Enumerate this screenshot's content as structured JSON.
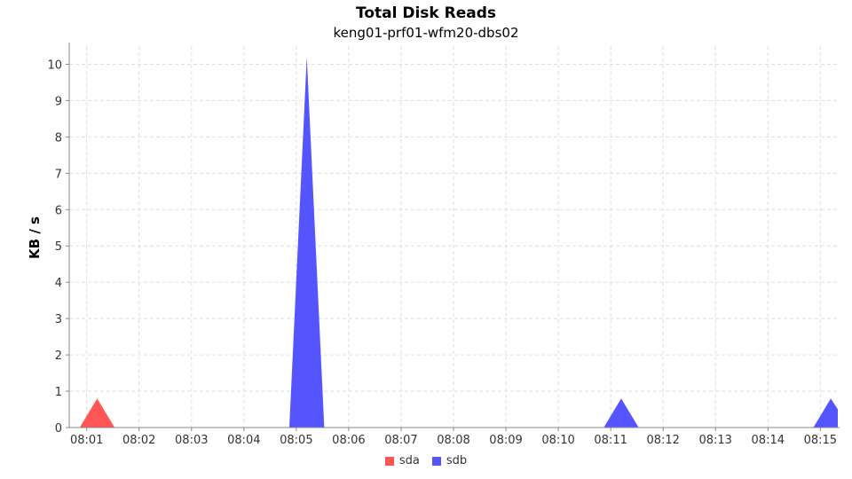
{
  "chart_data": {
    "type": "area",
    "title": "Total Disk Reads",
    "subtitle": "keng01-prf01-wfm20-dbs02",
    "xlabel": "",
    "ylabel": "KB / s",
    "x_ticks": [
      "08:01",
      "08:02",
      "08:03",
      "08:04",
      "08:05",
      "08:06",
      "08:07",
      "08:08",
      "08:09",
      "08:10",
      "08:11",
      "08:12",
      "08:13",
      "08:14",
      "08:15"
    ],
    "y_ticks": [
      0,
      1,
      2,
      3,
      4,
      5,
      6,
      7,
      8,
      9,
      10
    ],
    "xlim": [
      "08:00:40",
      "08:15:20"
    ],
    "ylim": [
      0,
      10.5
    ],
    "grid": true,
    "legend_position": "bottom-center",
    "series": [
      {
        "name": "sda",
        "color": "#ff5555",
        "points": [
          {
            "x": "08:00:52",
            "y": 0
          },
          {
            "x": "08:01:12",
            "y": 0.8
          },
          {
            "x": "08:01:32",
            "y": 0
          }
        ]
      },
      {
        "name": "sdb",
        "color": "#5555ff",
        "points": [
          {
            "x": "08:04:52",
            "y": 0
          },
          {
            "x": "08:05:12",
            "y": 10.2
          },
          {
            "x": "08:05:32",
            "y": 0
          },
          {
            "x": "08:10:52",
            "y": 0
          },
          {
            "x": "08:11:12",
            "y": 0.8
          },
          {
            "x": "08:11:32",
            "y": 0
          },
          {
            "x": "08:14:52",
            "y": 0
          },
          {
            "x": "08:15:12",
            "y": 0.8
          },
          {
            "x": "08:15:20",
            "y": 0.5
          }
        ]
      }
    ]
  }
}
